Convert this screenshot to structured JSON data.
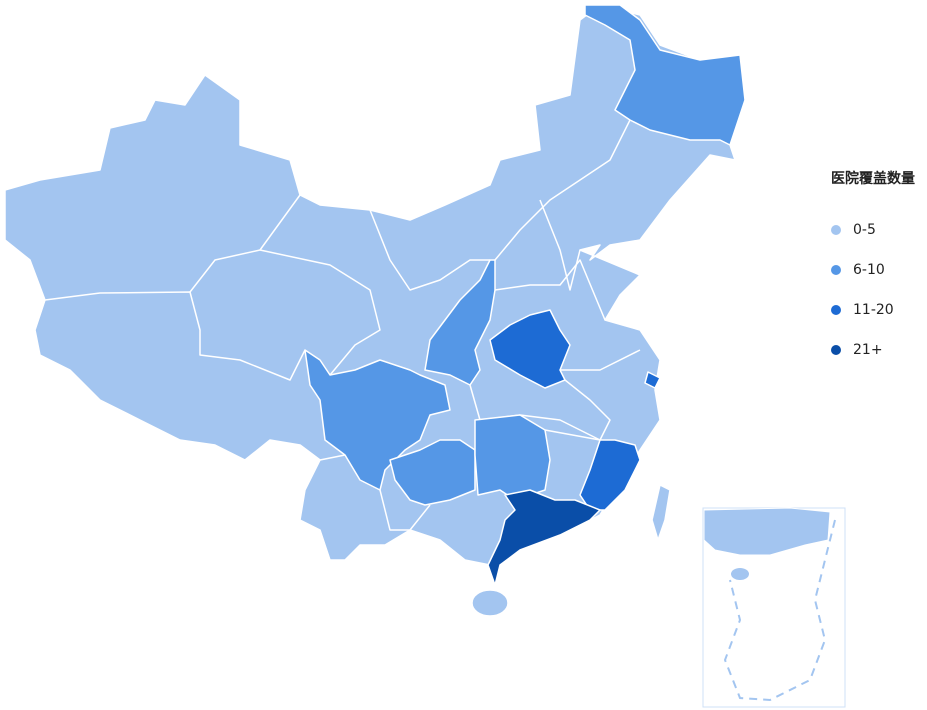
{
  "legend": {
    "title": "医院覆盖数量",
    "items": [
      {
        "label": "0-5",
        "color": "#a3c5f0"
      },
      {
        "label": "6-10",
        "color": "#5597e6"
      },
      {
        "label": "11-20",
        "color": "#1d6bd4"
      },
      {
        "label": "21+",
        "color": "#0a4ea8"
      }
    ]
  },
  "regions": [
    {
      "name": "黑龙江",
      "category": "6-10"
    },
    {
      "name": "陕西",
      "category": "6-10"
    },
    {
      "name": "四川",
      "category": "6-10"
    },
    {
      "name": "贵州",
      "category": "6-10"
    },
    {
      "name": "湖南",
      "category": "6-10"
    },
    {
      "name": "河南",
      "category": "11-20"
    },
    {
      "name": "福建",
      "category": "11-20"
    },
    {
      "name": "上海",
      "category": "11-20"
    },
    {
      "name": "广东",
      "category": "21+"
    },
    {
      "name": "其他",
      "category": "0-5"
    }
  ],
  "inset": "南海诸岛"
}
